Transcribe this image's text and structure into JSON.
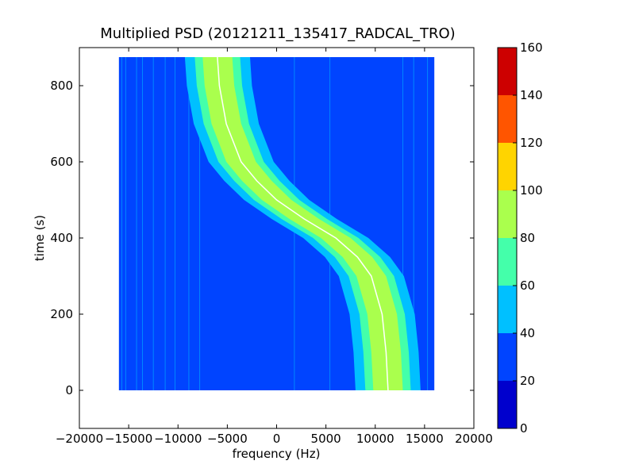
{
  "chart_data": {
    "type": "heatmap",
    "title": "Multiplied PSD (20121211_135417_RADCAL_TRO)",
    "xlabel": "frequency (Hz)",
    "ylabel": "time (s)",
    "xlim": [
      -20000,
      20000
    ],
    "ylim": [
      -100,
      900
    ],
    "xticks": [
      -20000,
      -15000,
      -10000,
      -5000,
      0,
      5000,
      10000,
      15000,
      20000
    ],
    "xtick_labels": [
      "−20000",
      "−15000",
      "−10000",
      "−5000",
      "0",
      "5000",
      "10000",
      "15000",
      "20000"
    ],
    "yticks": [
      0,
      200,
      400,
      600,
      800
    ],
    "ytick_labels": [
      "0",
      "200",
      "400",
      "600",
      "800"
    ],
    "data_extent": {
      "freq": [
        -16000,
        16000
      ],
      "time": [
        0,
        875
      ]
    },
    "colorbar": {
      "levels": [
        0,
        20,
        40,
        60,
        80,
        100,
        120,
        140,
        160
      ],
      "tick_labels": [
        "0",
        "20",
        "40",
        "60",
        "80",
        "100",
        "120",
        "140",
        "160"
      ],
      "colors": [
        "#0000cd",
        "#0044ff",
        "#00c0ff",
        "#44ffaa",
        "#aaff4d",
        "#ffd400",
        "#ff5500",
        "#cd0000"
      ]
    },
    "background_level_color": "#0044ff",
    "signal": {
      "description_level": "S-shaped track in frequency vs time",
      "center_freq_at_time": [
        {
          "time": 875,
          "freq": -6000
        },
        {
          "time": 800,
          "freq": -5800
        },
        {
          "time": 700,
          "freq": -5100
        },
        {
          "time": 600,
          "freq": -3600
        },
        {
          "time": 550,
          "freq": -2000
        },
        {
          "time": 500,
          "freq": 0
        },
        {
          "time": 450,
          "freq": 2800
        },
        {
          "time": 400,
          "freq": 6000
        },
        {
          "time": 350,
          "freq": 8200
        },
        {
          "time": 300,
          "freq": 9600
        },
        {
          "time": 200,
          "freq": 10700
        },
        {
          "time": 100,
          "freq": 11100
        },
        {
          "time": 0,
          "freq": 11300
        }
      ],
      "band_halfwidths_hz": {
        "level_40": 3300,
        "level_60": 2300,
        "level_80": 1500
      }
    },
    "vertical_lines_freq": [
      -15700,
      -15300,
      -14200,
      -13600,
      -12500,
      -11300,
      -10300,
      -8900,
      -7800,
      1800,
      5400,
      12800,
      13900,
      15300
    ]
  }
}
